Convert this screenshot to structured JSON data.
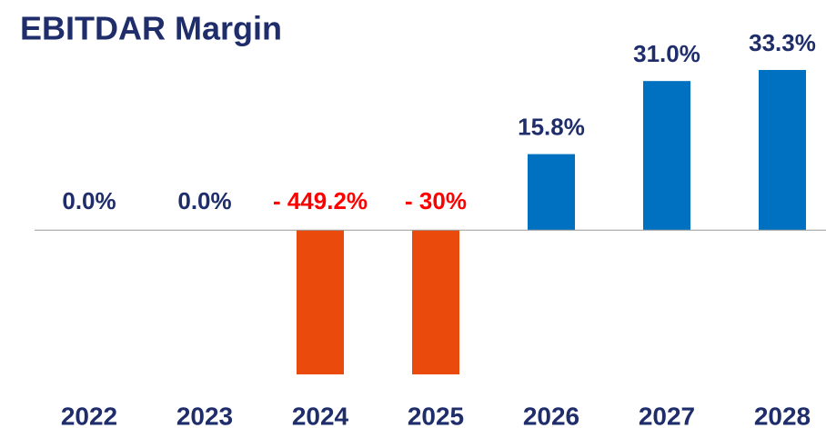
{
  "chart_data": {
    "type": "bar",
    "title": "EBITDAR Margin",
    "categories": [
      "2022",
      "2023",
      "2024",
      "2025",
      "2026",
      "2027",
      "2028"
    ],
    "values": [
      0.0,
      0.0,
      -449.2,
      -30,
      15.8,
      31.0,
      33.3
    ],
    "value_labels": [
      "0.0%",
      "0.0%",
      "- 449.2%",
      "- 30%",
      "15.8%",
      "31.0%",
      "33.3%"
    ],
    "colors": [
      "#0070c0",
      "#0070c0",
      "#ea4a0c",
      "#ea4a0c",
      "#0070c0",
      "#0070c0",
      "#0070c0"
    ],
    "label_colors": [
      "#1f2d6b",
      "#1f2d6b",
      "#ff0000",
      "#ff0000",
      "#1f2d6b",
      "#1f2d6b",
      "#1f2d6b"
    ],
    "ylim": [
      -30,
      35
    ]
  }
}
